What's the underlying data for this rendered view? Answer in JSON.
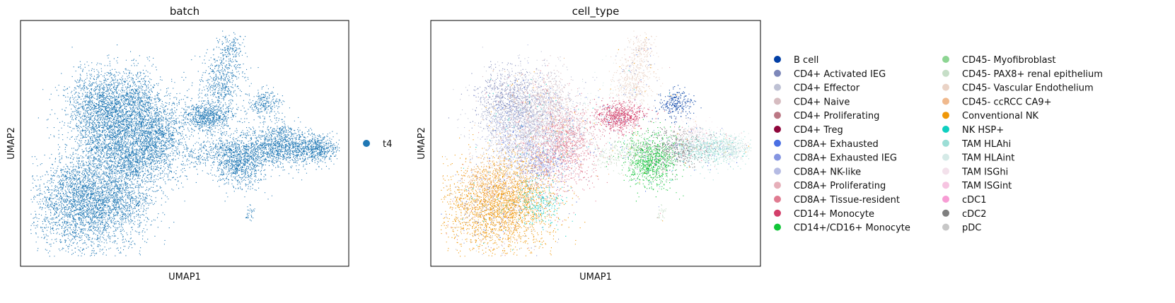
{
  "chart_data": [
    {
      "type": "scatter",
      "title": "batch",
      "xlabel": "UMAP1",
      "ylabel": "UMAP2",
      "grid": false,
      "legend_placement": "right",
      "legend": [
        {
          "name": "t4",
          "color": "#1f77b4"
        }
      ]
    },
    {
      "type": "scatter",
      "title": "cell_type",
      "xlabel": "UMAP1",
      "ylabel": "UMAP2",
      "grid": false,
      "legend_placement": "right",
      "legend": [
        {
          "name": "B cell",
          "color": "#023fa5"
        },
        {
          "name": "CD4+ Activated IEG",
          "color": "#7d87b9"
        },
        {
          "name": "CD4+ Effector",
          "color": "#bec1d4"
        },
        {
          "name": "CD4+ Naive",
          "color": "#d6bcc0"
        },
        {
          "name": "CD4+ Proliferating",
          "color": "#bb7784"
        },
        {
          "name": "CD4+ Treg",
          "color": "#8e063b"
        },
        {
          "name": "CD8A+ Exhausted",
          "color": "#4a6fe3"
        },
        {
          "name": "CD8A+ Exhausted IEG",
          "color": "#8595e1"
        },
        {
          "name": "CD8A+ NK-like",
          "color": "#b5bbe3"
        },
        {
          "name": "CD8A+ Proliferating",
          "color": "#e6afb9"
        },
        {
          "name": "CD8A+ Tissue-resident",
          "color": "#e07b91"
        },
        {
          "name": "CD14+ Monocyte",
          "color": "#d33f6a"
        },
        {
          "name": "CD14+/CD16+ Monocyte",
          "color": "#11c638"
        },
        {
          "name": "CD45- Myofibroblast",
          "color": "#8dd593"
        },
        {
          "name": "CD45- PAX8+ renal epithelium",
          "color": "#c6dec7"
        },
        {
          "name": "CD45- Vascular Endothelium",
          "color": "#ead3c6"
        },
        {
          "name": "CD45- ccRCC CA9+",
          "color": "#f0b98d"
        },
        {
          "name": "Conventional NK",
          "color": "#ef9708"
        },
        {
          "name": "NK HSP+",
          "color": "#0fcfc0"
        },
        {
          "name": "TAM HLAhi",
          "color": "#9cded6"
        },
        {
          "name": "TAM HLAint",
          "color": "#d5eae7"
        },
        {
          "name": "TAM ISGhi",
          "color": "#f3e1eb"
        },
        {
          "name": "TAM ISGint",
          "color": "#f6c4e1"
        },
        {
          "name": "cDC1",
          "color": "#f79cd4"
        },
        {
          "name": "cDC2",
          "color": "#7f7f7f"
        },
        {
          "name": "pDC",
          "color": "#c7c7c7"
        }
      ]
    }
  ]
}
